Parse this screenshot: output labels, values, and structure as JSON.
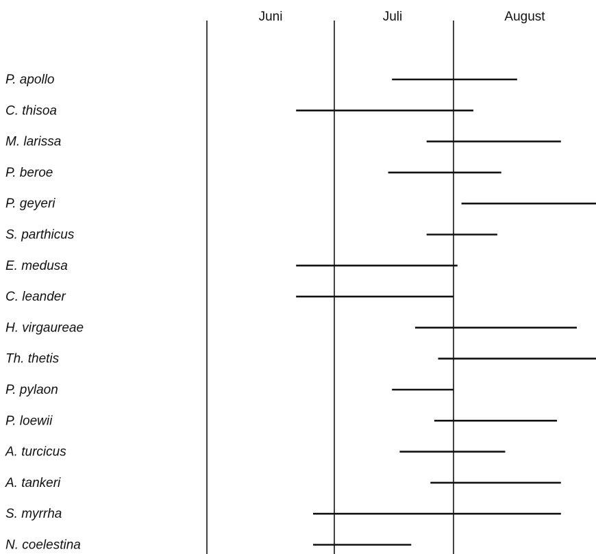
{
  "chart_data": {
    "type": "range",
    "title": "",
    "months": [
      "Juni",
      "Juli",
      "August"
    ],
    "series": [
      {
        "species": "P. apollo",
        "start": "Jul 16",
        "end": "Aug 17"
      },
      {
        "species": "C. thisoa",
        "start": "Jun 22",
        "end": "Aug 6"
      },
      {
        "species": "M. larissa",
        "start": "Jul 25",
        "end": "Aug 28"
      },
      {
        "species": "P. beroe",
        "start": "Jul 15",
        "end": "Aug 13"
      },
      {
        "species": "P. geyeri",
        "start": "Aug 3",
        "end": "Sep 10"
      },
      {
        "species": "S. parthicus",
        "start": "Jul 25",
        "end": "Aug 12"
      },
      {
        "species": "E. medusa",
        "start": "Jun 22",
        "end": "Aug 2"
      },
      {
        "species": "C. leander",
        "start": "Jun 22",
        "end": "Aug 1"
      },
      {
        "species": "H. virgaureae",
        "start": "Jul 22",
        "end": "Sep 1"
      },
      {
        "species": "Th. thetis",
        "start": "Jul 28",
        "end": "Sep 8"
      },
      {
        "species": "P. pylaon",
        "start": "Jul 16",
        "end": "Aug 1"
      },
      {
        "species": "P. loewii",
        "start": "Jul 27",
        "end": "Aug 27"
      },
      {
        "species": "A. turcicus",
        "start": "Jul 18",
        "end": "Aug 14"
      },
      {
        "species": "A. tankeri",
        "start": "Jul 26",
        "end": "Aug 28"
      },
      {
        "species": "S. myrrha",
        "start": "Jun 26",
        "end": "Aug 28"
      },
      {
        "species": "N. coelestina",
        "start": "Jun 26",
        "end": "Jul 21"
      }
    ]
  }
}
